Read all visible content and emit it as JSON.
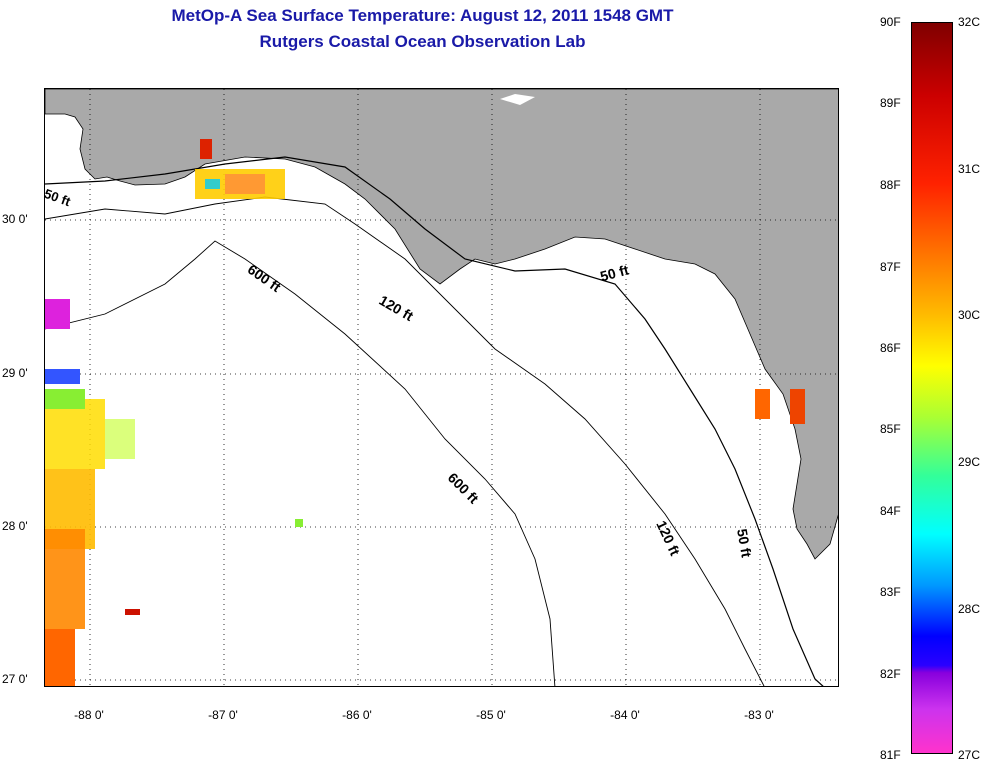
{
  "title": {
    "line1": "MetOp-A Sea Surface Temperature:  August 12, 2011 1548 GMT",
    "line2": "Rutgers Coastal Ocean Observation Lab"
  },
  "map": {
    "lat_labels": [
      "30 0'",
      "29 0'",
      "28 0'",
      "27 0'"
    ],
    "lon_labels": [
      "-88 0'",
      "-87 0'",
      "-86 0'",
      "-85 0'",
      "-84 0'",
      "-83 0'"
    ],
    "contour_labels": [
      "50 ft",
      "600 ft",
      "120 ft",
      "50 ft",
      "600 ft",
      "120 ft",
      "50 ft"
    ],
    "colors": {
      "land": "#a9a9a9",
      "water": "#ffffff"
    }
  },
  "colorbar": {
    "fahrenheit_labels": [
      "90F",
      "89F",
      "88F",
      "87F",
      "86F",
      "85F",
      "84F",
      "83F",
      "82F",
      "81F"
    ],
    "celsius_labels": [
      "32C",
      "31C",
      "30C",
      "29C",
      "28C",
      "27C"
    ]
  }
}
